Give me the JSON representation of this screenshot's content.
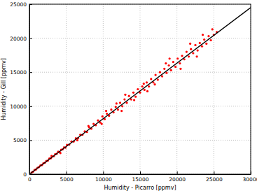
{
  "chart_data": {
    "type": "scatter",
    "x_label": "Humidity - Picarro [ppmv]",
    "y_label": "Humidity - Gill [ppmv]",
    "xlim": [
      0,
      30000
    ],
    "xticks": [
      0,
      5000,
      10000,
      15000,
      20000,
      25000,
      30000
    ],
    "ylim": [
      0,
      25000
    ],
    "yticks": [
      0,
      5000,
      10000,
      15000,
      20000,
      25000
    ],
    "grid": true,
    "series": [
      {
        "type": "scatter",
        "color": "#ff0000",
        "marker": "circle",
        "x": [
          300,
          500,
          700,
          900,
          1100,
          1300,
          1500,
          1700,
          1900,
          2100,
          2300,
          2500,
          2700,
          2900,
          3100,
          3300,
          3500,
          3700,
          3900,
          4100,
          4300,
          4500,
          4700,
          4900,
          5100,
          5400,
          5700,
          6000,
          6300,
          6600,
          6900,
          7200,
          7500,
          7800,
          8100,
          8400,
          8700,
          9000,
          9300,
          9600,
          9900,
          10200,
          10500,
          10800,
          11100,
          11400,
          11700,
          12000,
          12300,
          12600,
          12900,
          13200,
          13500,
          13800,
          14100,
          14400,
          14700,
          15000,
          15300,
          15600,
          15900,
          16200,
          16500,
          16800,
          17100,
          17400,
          17700,
          18000,
          18300,
          18600,
          18900,
          19200,
          19500,
          19800,
          20100,
          20400,
          20700,
          21000,
          21300,
          21600,
          21900,
          22200,
          22500,
          22800,
          23100,
          23400,
          23700,
          24000,
          24300,
          24600,
          25000,
          25400,
          3000,
          4200,
          6500,
          8000,
          9800,
          11800,
          12500,
          13000,
          14200,
          15500,
          17000,
          19000,
          20500,
          21800,
          22700,
          23500,
          24800,
          10400,
          16000,
          18500
        ],
        "values": [
          250,
          380,
          620,
          700,
          950,
          1050,
          1300,
          1350,
          1600,
          1700,
          1950,
          2000,
          2300,
          2350,
          2600,
          2650,
          2950,
          3000,
          3300,
          3250,
          3600,
          3650,
          3950,
          3900,
          4300,
          4350,
          4800,
          4800,
          5300,
          5300,
          5800,
          5800,
          6300,
          6200,
          6900,
          6700,
          7400,
          7200,
          7900,
          7600,
          8500,
          8100,
          8900,
          8600,
          9500,
          9100,
          9900,
          9500,
          10500,
          10000,
          11000,
          10500,
          11500,
          11000,
          12000,
          11400,
          12500,
          12000,
          12900,
          12400,
          13500,
          12900,
          14000,
          13500,
          14600,
          13900,
          15000,
          14400,
          15500,
          14900,
          16000,
          15300,
          16500,
          15800,
          17000,
          16300,
          17400,
          16900,
          18000,
          17300,
          18400,
          17800,
          19000,
          18200,
          19300,
          18800,
          19800,
          19200,
          20300,
          19700,
          20500,
          20900,
          2700,
          3100,
          5000,
          7100,
          7400,
          10400,
          9300,
          11700,
          10900,
          13300,
          13200,
          17000,
          15500,
          19200,
          17300,
          20500,
          21300,
          9300,
          12200,
          16300
        ]
      },
      {
        "type": "line",
        "color": "#000000",
        "line_style": "solid",
        "x": [
          0,
          30000
        ],
        "values": [
          0,
          24500
        ]
      }
    ]
  }
}
